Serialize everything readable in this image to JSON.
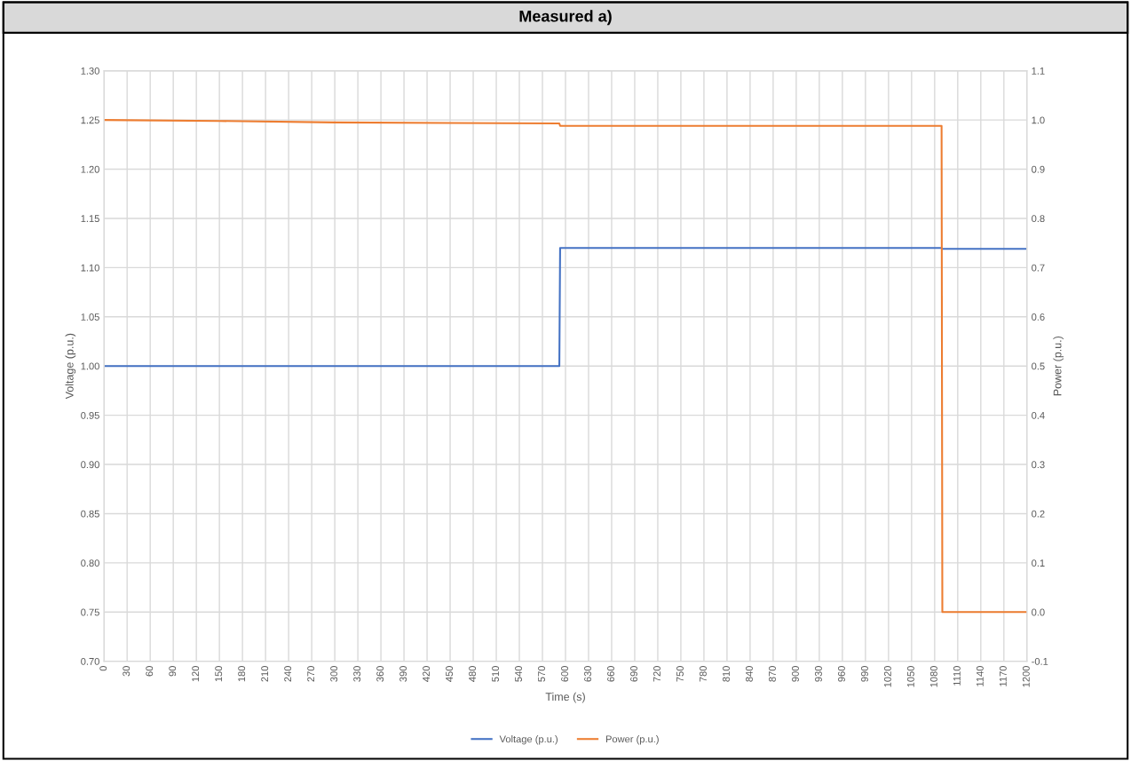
{
  "chart_data": {
    "type": "line",
    "title": "Measured a)",
    "xlabel": "Time (s)",
    "ylabel": "Voltage (p.u.)",
    "y2label": "Power (p.u.)",
    "xlim": [
      0,
      1200
    ],
    "xticks": [
      0,
      30,
      60,
      90,
      120,
      150,
      180,
      210,
      240,
      270,
      300,
      330,
      360,
      390,
      420,
      450,
      480,
      510,
      540,
      570,
      600,
      630,
      660,
      690,
      720,
      750,
      780,
      810,
      840,
      870,
      900,
      930,
      960,
      990,
      1020,
      1050,
      1080,
      1110,
      1140,
      1170,
      1200
    ],
    "ylim": [
      0.7,
      1.3
    ],
    "yticks": [
      {
        "value": 0.7,
        "label": "0.70"
      },
      {
        "value": 0.75,
        "label": "0.75"
      },
      {
        "value": 0.8,
        "label": "0.80"
      },
      {
        "value": 0.85,
        "label": "0.85"
      },
      {
        "value": 0.9,
        "label": "0.90"
      },
      {
        "value": 0.95,
        "label": "0.95"
      },
      {
        "value": 1.0,
        "label": "1.00"
      },
      {
        "value": 1.05,
        "label": "1.05"
      },
      {
        "value": 1.1,
        "label": "1.10"
      },
      {
        "value": 1.15,
        "label": "1.15"
      },
      {
        "value": 1.2,
        "label": "1.20"
      },
      {
        "value": 1.25,
        "label": "1.25"
      },
      {
        "value": 1.3,
        "label": "1.30"
      }
    ],
    "y2lim": [
      -0.1,
      1.1
    ],
    "y2ticks": [
      {
        "value": -0.1,
        "label": "-0.1"
      },
      {
        "value": 0.0,
        "label": "0.0"
      },
      {
        "value": 0.1,
        "label": "0.1"
      },
      {
        "value": 0.2,
        "label": "0.2"
      },
      {
        "value": 0.3,
        "label": "0.3"
      },
      {
        "value": 0.4,
        "label": "0.4"
      },
      {
        "value": 0.5,
        "label": "0.5"
      },
      {
        "value": 0.6,
        "label": "0.6"
      },
      {
        "value": 0.7,
        "label": "0.7"
      },
      {
        "value": 0.8,
        "label": "0.8"
      },
      {
        "value": 0.9,
        "label": "0.9"
      },
      {
        "value": 1.0,
        "label": "1.0"
      },
      {
        "value": 1.1,
        "label": "1.1"
      }
    ],
    "grid": true,
    "legend": "bottom",
    "marker": "none",
    "line_style": "solid",
    "series": [
      {
        "name": "Voltage (p.u.)",
        "color": "#4472c4",
        "x": [
          0,
          150,
          300,
          450,
          592,
          593,
          700,
          900,
          1089,
          1090,
          1200
        ],
        "values": [
          1.0,
          1.0,
          1.0,
          1.0,
          1.0,
          1.12,
          1.12,
          1.12,
          1.12,
          1.119,
          1.119
        ]
      },
      {
        "name": "Power (p.u.)",
        "color": "#ed7d31",
        "axis": "y2",
        "x": [
          0,
          150,
          300,
          450,
          592,
          593,
          800,
          1089,
          1090,
          1200
        ],
        "values": [
          1.0,
          0.998,
          0.995,
          0.994,
          0.993,
          0.988,
          0.988,
          0.988,
          0.0,
          0.0
        ]
      }
    ]
  }
}
